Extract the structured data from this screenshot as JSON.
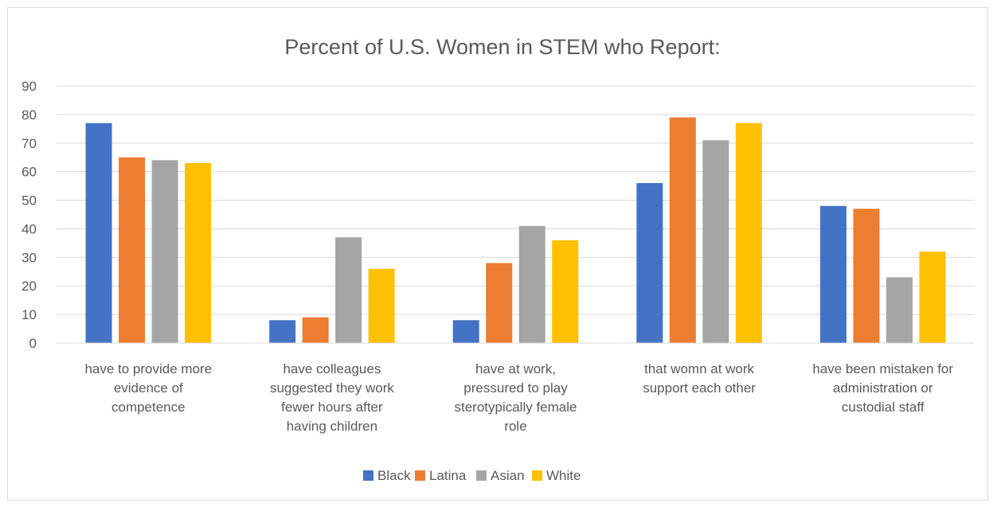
{
  "chart_data": {
    "type": "bar",
    "title": "Percent of U.S. Women in STEM who Report:",
    "categories": [
      [
        "have to provide more",
        "evidence of",
        "competence"
      ],
      [
        "have colleagues",
        "suggested they work",
        "fewer hours after",
        "having children"
      ],
      [
        "have at work,",
        "pressured to play",
        "sterotypically female",
        "role"
      ],
      [
        "that womn at work",
        "support each other"
      ],
      [
        "have been mistaken for",
        "administration or",
        "custodial staff"
      ]
    ],
    "series": [
      {
        "name": "Black",
        "color": "#4472C4",
        "values": [
          77,
          8,
          8,
          56,
          48
        ]
      },
      {
        "name": "Latina",
        "color": "#ED7D31",
        "values": [
          65,
          9,
          28,
          79,
          47
        ]
      },
      {
        "name": "Asian",
        "color": "#A5A5A5",
        "values": [
          64,
          37,
          41,
          71,
          23
        ]
      },
      {
        "name": "White",
        "color": "#FFC000",
        "values": [
          63,
          26,
          36,
          77,
          32
        ]
      }
    ],
    "ylim": [
      0,
      90
    ],
    "yticks": [
      0,
      10,
      20,
      30,
      40,
      50,
      60,
      70,
      80,
      90
    ],
    "grid": true,
    "legend_position": "bottom"
  }
}
